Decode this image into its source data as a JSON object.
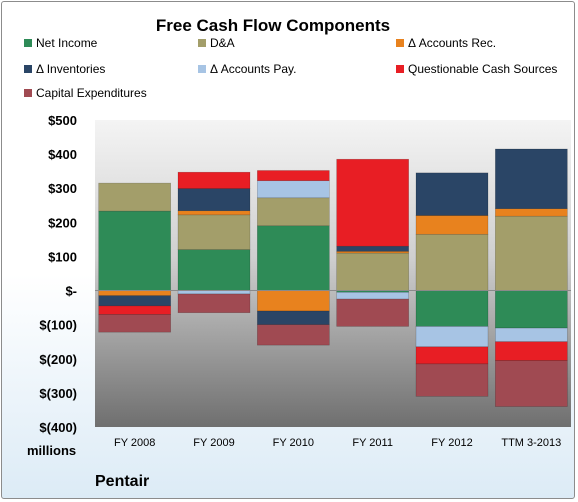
{
  "chart_data": {
    "type": "bar",
    "stacked": true,
    "title": "Free Cash Flow Components",
    "unit_label": "millions",
    "footer": "Pentair",
    "categories": [
      "FY 2008",
      "FY 2009",
      "FY 2010",
      "FY 2011",
      "FY 2012",
      "TTM 3-2013"
    ],
    "ylim": [
      -400,
      500
    ],
    "yticks": [
      {
        "value": 500,
        "label": "$500"
      },
      {
        "value": 400,
        "label": "$400"
      },
      {
        "value": 300,
        "label": "$300"
      },
      {
        "value": 200,
        "label": "$200"
      },
      {
        "value": 100,
        "label": "$100"
      },
      {
        "value": 0,
        "label": "$-"
      },
      {
        "value": -100,
        "label": "$(100)"
      },
      {
        "value": -200,
        "label": "$(200)"
      },
      {
        "value": -300,
        "label": "$(300)"
      },
      {
        "value": -400,
        "label": "$(400)"
      }
    ],
    "grid": false,
    "legend_position": "top",
    "series": [
      {
        "name": "Net Income",
        "color": "#2e8b57",
        "values": [
          233,
          120,
          190,
          -5,
          -105,
          -110
        ]
      },
      {
        "name": "D&A",
        "color": "#a39e6a",
        "values": [
          82,
          102,
          82,
          110,
          165,
          218
        ]
      },
      {
        "name": "Δ Accounts Rec.",
        "color": "#e8821e",
        "values": [
          -15,
          12,
          -60,
          5,
          55,
          22
        ]
      },
      {
        "name": "Δ Inventories",
        "color": "#2a4566",
        "values": [
          -30,
          65,
          -40,
          15,
          125,
          175
        ]
      },
      {
        "name": "Δ Accounts Pay.",
        "color": "#a7c4e4",
        "values": [
          0,
          -10,
          50,
          -20,
          -60,
          -40
        ]
      },
      {
        "name": "Questionable Cash Sources",
        "color": "#e81e24",
        "values": [
          -25,
          48,
          30,
          255,
          -50,
          -55
        ]
      },
      {
        "name": "Capital Expenditures",
        "color": "#a04a52",
        "values": [
          -52,
          -55,
          -60,
          -80,
          -95,
          -135
        ]
      }
    ]
  }
}
